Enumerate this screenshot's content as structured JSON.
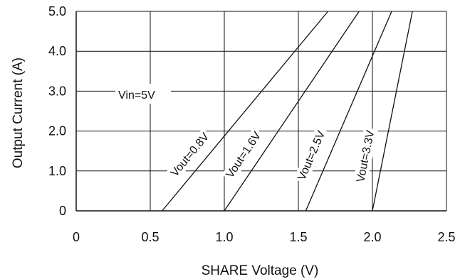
{
  "chart_data": {
    "type": "line",
    "title": "",
    "xlabel": "SHARE Voltage (V)",
    "ylabel": "Output Current (A)",
    "xlim": [
      0,
      2.5
    ],
    "ylim": [
      0,
      5.0
    ],
    "x_ticks": [
      0,
      0.5,
      1.0,
      1.5,
      2.0,
      2.5
    ],
    "x_tick_labels": [
      "0",
      "0.5",
      "1.0",
      "1.5",
      "2.0",
      "2.5"
    ],
    "y_ticks": [
      0,
      1.0,
      2.0,
      3.0,
      4.0,
      5.0
    ],
    "y_tick_labels": [
      "0",
      "1.0",
      "2.0",
      "3.0",
      "4.0",
      "5.0"
    ],
    "grid": true,
    "legend": "none",
    "line_color": "#111111",
    "annotations": [
      {
        "text": "Vin=5V"
      }
    ],
    "series": [
      {
        "name": "Vout=0.8V",
        "x": [
          0.58,
          1.7
        ],
        "y": [
          0,
          5.0
        ]
      },
      {
        "name": "Vout=1.6V",
        "x": [
          1.0,
          1.91
        ],
        "y": [
          0,
          5.0
        ]
      },
      {
        "name": "Vout=2.5V",
        "x": [
          1.55,
          2.13
        ],
        "y": [
          0,
          5.0
        ]
      },
      {
        "name": "Vout=3.3V",
        "x": [
          2.0,
          2.27
        ],
        "y": [
          0,
          5.0
        ]
      }
    ]
  }
}
